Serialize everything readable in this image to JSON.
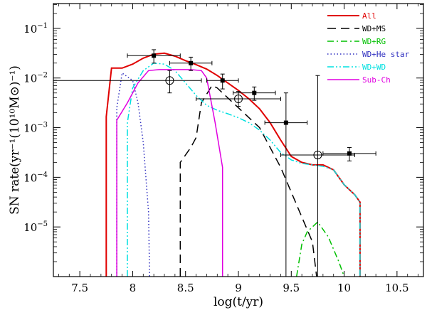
{
  "chart_data": {
    "type": "line",
    "title": "",
    "xlabel": "log(t/yr)",
    "ylabel": "SN rate(yr⁻¹(10¹⁰M⊙)⁻¹)",
    "xlim": [
      7.25,
      10.75
    ],
    "ylim_log10": [
      -6,
      -0.5
    ],
    "y_scale": "log",
    "x_ticks": [
      {
        "value": 7.5,
        "label": "7.5"
      },
      {
        "value": 8,
        "label": "8"
      },
      {
        "value": 8.5,
        "label": "8.5"
      },
      {
        "value": 9,
        "label": "9"
      },
      {
        "value": 9.5,
        "label": "9.5"
      },
      {
        "value": 10,
        "label": "10"
      },
      {
        "value": 10.5,
        "label": "10.5"
      }
    ],
    "y_ticks": [
      {
        "exp": -1,
        "base": "10",
        "sup": "−1"
      },
      {
        "exp": -2,
        "base": "10",
        "sup": "−2"
      },
      {
        "exp": -3,
        "base": "10",
        "sup": "−3"
      },
      {
        "exp": -4,
        "base": "10",
        "sup": "−4"
      },
      {
        "exp": -5,
        "base": "10",
        "sup": "−5"
      }
    ],
    "legend_position": "top-right",
    "series": [
      {
        "name": "All",
        "color": "#e00000",
        "dash": "solid",
        "points": [
          [
            7.75,
            -6
          ],
          [
            7.75,
            -2.78
          ],
          [
            7.8,
            -1.8
          ],
          [
            7.9,
            -1.8
          ],
          [
            8.0,
            -1.72
          ],
          [
            8.1,
            -1.6
          ],
          [
            8.2,
            -1.52
          ],
          [
            8.3,
            -1.5
          ],
          [
            8.4,
            -1.56
          ],
          [
            8.5,
            -1.65
          ],
          [
            8.6,
            -1.73
          ],
          [
            8.7,
            -1.82
          ],
          [
            8.8,
            -1.95
          ],
          [
            8.9,
            -2.1
          ],
          [
            9.0,
            -2.25
          ],
          [
            9.1,
            -2.42
          ],
          [
            9.2,
            -2.62
          ],
          [
            9.3,
            -2.9
          ],
          [
            9.4,
            -3.25
          ],
          [
            9.5,
            -3.58
          ],
          [
            9.6,
            -3.7
          ],
          [
            9.7,
            -3.75
          ],
          [
            9.8,
            -3.75
          ],
          [
            9.9,
            -3.85
          ],
          [
            10.0,
            -4.15
          ],
          [
            10.1,
            -4.35
          ],
          [
            10.15,
            -4.5
          ],
          [
            10.15,
            -6
          ]
        ]
      },
      {
        "name": "WD+MS",
        "color": "#000000",
        "dash": "long",
        "points": [
          [
            8.45,
            -6
          ],
          [
            8.45,
            -3.7
          ],
          [
            8.55,
            -3.4
          ],
          [
            8.6,
            -3.2
          ],
          [
            8.65,
            -2.5
          ],
          [
            8.75,
            -2.15
          ],
          [
            8.8,
            -2.2
          ],
          [
            8.9,
            -2.4
          ],
          [
            9.0,
            -2.6
          ],
          [
            9.1,
            -2.8
          ],
          [
            9.2,
            -3.0
          ],
          [
            9.3,
            -3.4
          ],
          [
            9.4,
            -3.8
          ],
          [
            9.5,
            -4.3
          ],
          [
            9.6,
            -4.8
          ],
          [
            9.7,
            -5.3
          ],
          [
            9.74,
            -6
          ]
        ]
      },
      {
        "name": "WD+RG",
        "color": "#00c000",
        "dash": "dashdot",
        "points": [
          [
            9.55,
            -6
          ],
          [
            9.6,
            -5.35
          ],
          [
            9.65,
            -5.1
          ],
          [
            9.75,
            -4.9
          ],
          [
            9.85,
            -5.2
          ],
          [
            9.95,
            -5.7
          ],
          [
            10.0,
            -6
          ]
        ]
      },
      {
        "name": "WD+He star",
        "color": "#3030c0",
        "dash": "dotted",
        "points": [
          [
            7.85,
            -6
          ],
          [
            7.85,
            -2.6
          ],
          [
            7.9,
            -1.9
          ],
          [
            8.0,
            -2.05
          ],
          [
            8.05,
            -2.5
          ],
          [
            8.1,
            -3.3
          ],
          [
            8.15,
            -4.7
          ],
          [
            8.16,
            -6
          ]
        ]
      },
      {
        "name": "WD+WD",
        "color": "#00e0e0",
        "dash": "dashdotdot",
        "points": [
          [
            7.95,
            -6
          ],
          [
            7.95,
            -2.9
          ],
          [
            8.0,
            -2.2
          ],
          [
            8.1,
            -1.85
          ],
          [
            8.2,
            -1.7
          ],
          [
            8.3,
            -1.72
          ],
          [
            8.4,
            -1.85
          ],
          [
            8.5,
            -2.1
          ],
          [
            8.6,
            -2.35
          ],
          [
            8.7,
            -2.55
          ],
          [
            8.8,
            -2.65
          ],
          [
            8.9,
            -2.72
          ],
          [
            9.0,
            -2.8
          ],
          [
            9.1,
            -2.9
          ],
          [
            9.2,
            -3.05
          ],
          [
            9.3,
            -3.25
          ],
          [
            9.4,
            -3.5
          ],
          [
            9.5,
            -3.65
          ],
          [
            9.6,
            -3.72
          ],
          [
            9.7,
            -3.75
          ],
          [
            9.8,
            -3.78
          ],
          [
            9.9,
            -3.85
          ],
          [
            10.0,
            -4.15
          ],
          [
            10.1,
            -4.35
          ],
          [
            10.15,
            -4.5
          ],
          [
            10.15,
            -6
          ]
        ]
      },
      {
        "name": "Sub-Ch",
        "color": "#e000e0",
        "dash": "solid",
        "points": [
          [
            7.85,
            -6
          ],
          [
            7.85,
            -2.85
          ],
          [
            7.95,
            -2.5
          ],
          [
            8.05,
            -2.1
          ],
          [
            8.15,
            -1.85
          ],
          [
            8.25,
            -1.83
          ],
          [
            8.4,
            -1.83
          ],
          [
            8.55,
            -1.83
          ],
          [
            8.65,
            -1.85
          ],
          [
            8.7,
            -2.0
          ],
          [
            8.78,
            -2.9
          ],
          [
            8.85,
            -3.8
          ],
          [
            8.85,
            -6
          ]
        ]
      }
    ],
    "observations_filled_square": [
      {
        "x": 8.2,
        "y": -1.55,
        "xerr": [
          0.25,
          0.25
        ],
        "yerr": [
          0.15,
          0.12
        ]
      },
      {
        "x": 8.55,
        "y": -1.7,
        "xerr": [
          0.2,
          0.2
        ],
        "yerr": [
          0.15,
          0.12
        ]
      },
      {
        "x": 8.85,
        "y": -2.05,
        "xerr": [
          0.15,
          0.15
        ],
        "yerr": [
          0.17,
          0.13
        ]
      },
      {
        "x": 9.15,
        "y": -2.3,
        "xerr": [
          0.2,
          0.2
        ],
        "yerr": [
          0.15,
          0.12
        ]
      },
      {
        "x": 9.45,
        "y": -2.9,
        "xerr": [
          0.2,
          0.2
        ],
        "yerr": [
          3.1,
          0.6
        ]
      },
      {
        "x": 10.05,
        "y": -3.52,
        "xerr": [
          0.25,
          0.25
        ],
        "yerr": [
          0.15,
          0.12
        ]
      }
    ],
    "observations_open_circle": [
      {
        "x": 8.35,
        "y": -2.05,
        "xerr": [
          1.1,
          0.3
        ],
        "yerr": [
          0.25,
          0.2
        ]
      },
      {
        "x": 9.0,
        "y": -2.42,
        "xerr": [
          0.4,
          0.4
        ],
        "yerr": [
          0.15,
          0.15
        ]
      },
      {
        "x": 9.75,
        "y": -3.55,
        "xerr": [
          0.35,
          0.35
        ],
        "yerr": [
          2.45,
          1.6
        ]
      }
    ]
  }
}
